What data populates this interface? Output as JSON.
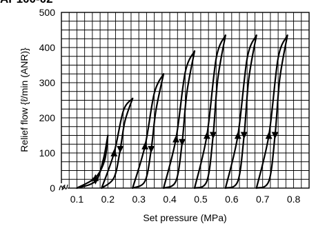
{
  "page": {
    "title": "AP100-02"
  },
  "chart_data": {
    "type": "line",
    "title": "",
    "xlabel": "Set pressure (MPa)",
    "ylabel": "Relief flow {ℓ/min (ANR)}",
    "x_ticks": [
      "0.1",
      "0.2",
      "0.3",
      "0.4",
      "0.5",
      "0.6",
      "0.7",
      "0.8"
    ],
    "y_ticks": [
      "0",
      "100",
      "200",
      "300",
      "400",
      "500"
    ],
    "y_range": [
      0,
      500
    ],
    "x_axis_break": true,
    "grid": true,
    "series": [
      {
        "x_start": 0.1,
        "x_end": 0.2,
        "peak": 150,
        "outer": [
          [
            0.1,
            0
          ],
          [
            0.16,
            30
          ],
          [
            0.19,
            80
          ],
          [
            0.2,
            150
          ]
        ],
        "inner": [
          [
            0.2,
            150
          ],
          [
            0.185,
            80
          ],
          [
            0.16,
            20
          ],
          [
            0.1,
            0
          ]
        ]
      },
      {
        "x_start": 0.18,
        "x_end": 0.28,
        "peak": 255,
        "outer": [
          [
            0.18,
            0
          ],
          [
            0.22,
            100
          ],
          [
            0.25,
            220
          ],
          [
            0.28,
            255
          ]
        ],
        "inner": [
          [
            0.28,
            255
          ],
          [
            0.255,
            190
          ],
          [
            0.24,
            110
          ],
          [
            0.22,
            30
          ],
          [
            0.18,
            0
          ]
        ]
      },
      {
        "x_start": 0.28,
        "x_end": 0.38,
        "peak": 325,
        "outer": [
          [
            0.28,
            0
          ],
          [
            0.32,
            120
          ],
          [
            0.35,
            270
          ],
          [
            0.38,
            325
          ]
        ],
        "inner": [
          [
            0.38,
            325
          ],
          [
            0.355,
            220
          ],
          [
            0.34,
            110
          ],
          [
            0.32,
            20
          ],
          [
            0.28,
            0
          ]
        ]
      },
      {
        "x_start": 0.38,
        "x_end": 0.48,
        "peak": 390,
        "outer": [
          [
            0.38,
            0
          ],
          [
            0.42,
            140
          ],
          [
            0.45,
            330
          ],
          [
            0.48,
            390
          ]
        ],
        "inner": [
          [
            0.48,
            390
          ],
          [
            0.455,
            270
          ],
          [
            0.44,
            130
          ],
          [
            0.42,
            20
          ],
          [
            0.38,
            0
          ]
        ]
      },
      {
        "x_start": 0.48,
        "x_end": 0.58,
        "peak": 435,
        "outer": [
          [
            0.48,
            0
          ],
          [
            0.52,
            150
          ],
          [
            0.55,
            370
          ],
          [
            0.58,
            435
          ]
        ],
        "inner": [
          [
            0.58,
            435
          ],
          [
            0.555,
            310
          ],
          [
            0.54,
            150
          ],
          [
            0.52,
            20
          ],
          [
            0.48,
            0
          ]
        ]
      },
      {
        "x_start": 0.58,
        "x_end": 0.68,
        "peak": 435,
        "outer": [
          [
            0.58,
            0
          ],
          [
            0.62,
            150
          ],
          [
            0.65,
            370
          ],
          [
            0.68,
            435
          ]
        ],
        "inner": [
          [
            0.68,
            435
          ],
          [
            0.655,
            310
          ],
          [
            0.64,
            150
          ],
          [
            0.62,
            20
          ],
          [
            0.58,
            0
          ]
        ]
      },
      {
        "x_start": 0.68,
        "x_end": 0.78,
        "peak": 435,
        "outer": [
          [
            0.68,
            0
          ],
          [
            0.72,
            150
          ],
          [
            0.75,
            370
          ],
          [
            0.78,
            435
          ]
        ],
        "inner": [
          [
            0.78,
            435
          ],
          [
            0.755,
            310
          ],
          [
            0.74,
            150
          ],
          [
            0.72,
            20
          ],
          [
            0.68,
            0
          ]
        ]
      }
    ]
  }
}
